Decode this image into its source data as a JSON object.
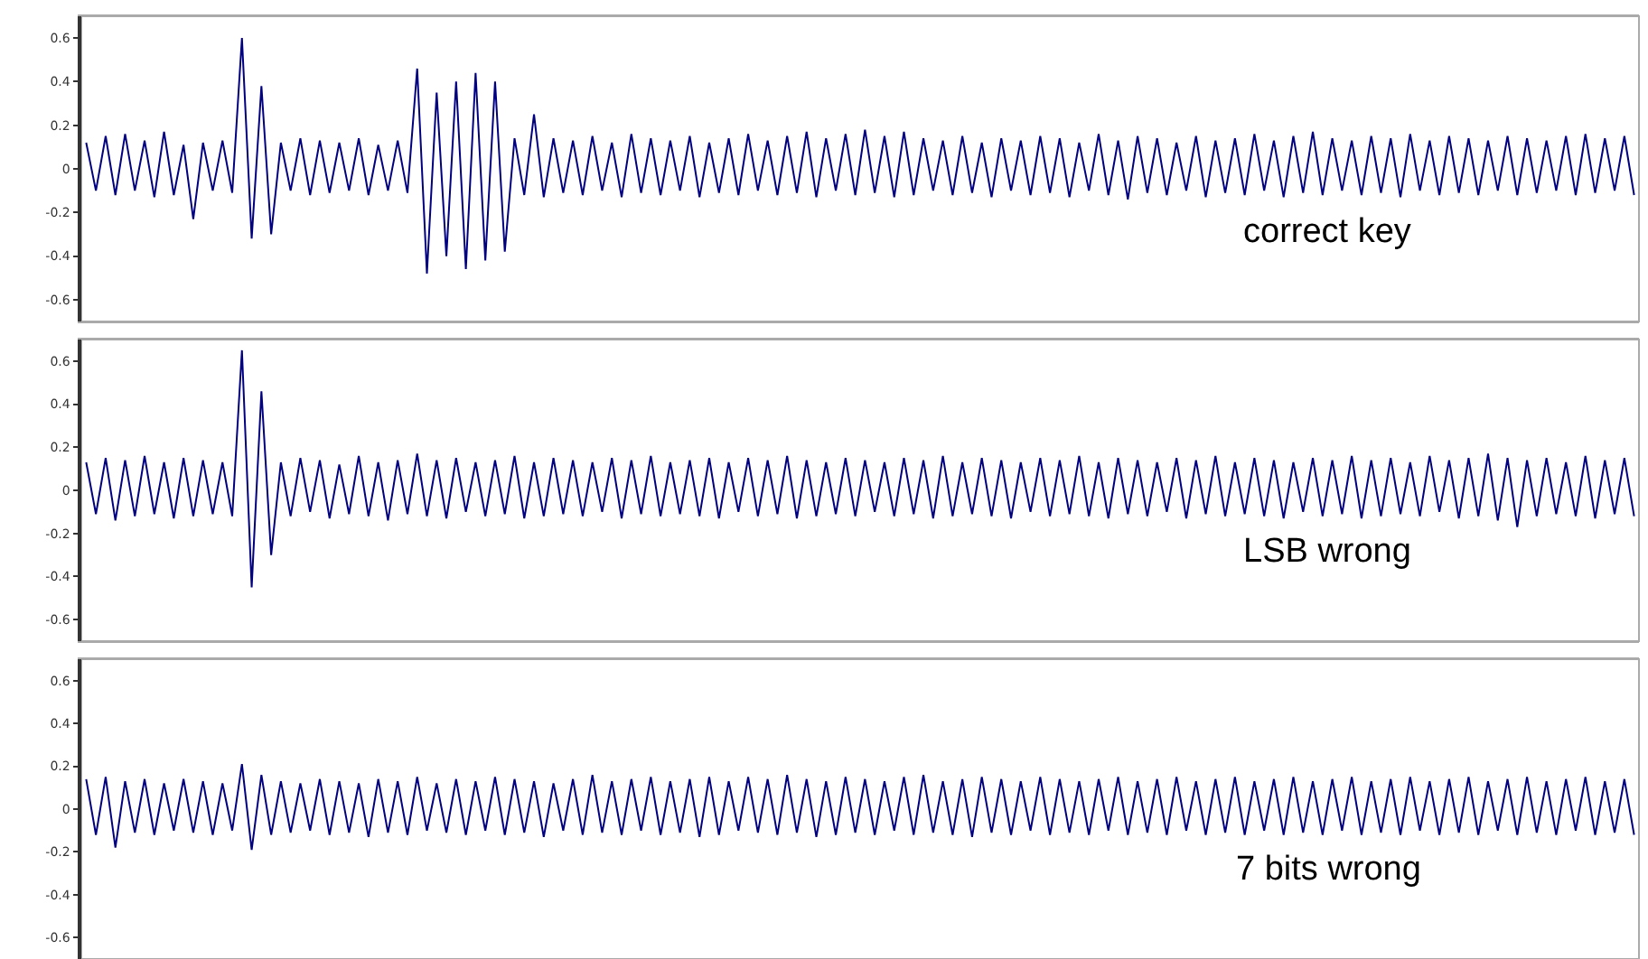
{
  "chart_data": [
    {
      "type": "line",
      "annotations": [
        "correct key"
      ],
      "ylim": [
        -0.7,
        0.7
      ],
      "yticks": [
        -0.6,
        -0.4,
        -0.2,
        0,
        0.2,
        0.4,
        0.6
      ],
      "grid": false,
      "tick_labels": "y",
      "line_style": "solid",
      "categories": [
        null,
        null,
        null,
        null,
        null,
        null,
        null,
        null,
        null,
        null,
        null,
        null,
        null,
        null,
        null,
        null,
        null,
        null,
        null,
        null,
        null,
        null,
        null,
        null,
        null,
        null,
        null,
        null,
        null,
        null,
        null,
        null,
        null,
        null,
        null,
        null,
        null,
        null,
        null,
        null,
        null,
        null,
        null,
        null,
        null,
        null,
        null,
        null,
        null,
        null,
        null,
        null,
        null,
        null,
        null,
        null,
        null,
        null,
        null,
        null,
        null,
        null,
        null,
        null,
        null,
        null,
        null,
        null,
        null,
        null,
        null,
        null,
        null,
        null,
        null,
        null,
        null,
        null,
        null,
        null,
        null,
        null,
        null,
        null,
        null,
        null,
        null,
        null,
        null,
        null,
        null,
        null,
        null,
        null,
        null,
        null,
        null,
        null,
        null,
        null,
        null,
        null,
        null,
        null,
        null,
        null,
        null,
        null,
        null,
        null,
        null,
        null,
        null,
        null,
        null,
        null,
        null,
        null,
        null,
        null,
        null,
        null,
        null,
        null,
        null,
        null,
        null,
        null,
        null,
        null,
        null,
        null,
        null,
        null,
        null,
        null,
        null,
        null,
        null,
        null,
        null,
        null,
        null,
        null,
        null,
        null,
        null,
        null,
        null,
        null,
        null,
        null,
        null,
        null,
        null,
        null,
        null,
        null,
        null,
        null
      ],
      "series": [
        {
          "color": "#000080",
          "values": [
            0.12,
            -0.1,
            0.15,
            -0.12,
            0.16,
            -0.1,
            0.13,
            -0.13,
            0.17,
            -0.12,
            0.11,
            -0.23,
            0.12,
            -0.1,
            0.13,
            -0.11,
            0.6,
            -0.32,
            0.38,
            -0.3,
            0.12,
            -0.1,
            0.14,
            -0.12,
            0.13,
            -0.11,
            0.12,
            -0.1,
            0.14,
            -0.12,
            0.11,
            -0.1,
            0.13,
            -0.11,
            0.46,
            -0.48,
            0.35,
            -0.4,
            0.4,
            -0.46,
            0.44,
            -0.42,
            0.4,
            -0.38,
            0.14,
            -0.12,
            0.25,
            -0.13,
            0.14,
            -0.11,
            0.13,
            -0.12,
            0.15,
            -0.1,
            0.12,
            -0.13,
            0.16,
            -0.11,
            0.14,
            -0.12,
            0.13,
            -0.1,
            0.15,
            -0.13,
            0.12,
            -0.11,
            0.14,
            -0.12,
            0.16,
            -0.1,
            0.13,
            -0.12,
            0.15,
            -0.11,
            0.17,
            -0.13,
            0.14,
            -0.1,
            0.16,
            -0.12,
            0.18,
            -0.11,
            0.15,
            -0.13,
            0.17,
            -0.12,
            0.14,
            -0.1,
            0.13,
            -0.12,
            0.15,
            -0.11,
            0.12,
            -0.13,
            0.14,
            -0.1,
            0.13,
            -0.12,
            0.15,
            -0.11,
            0.14,
            -0.13,
            0.12,
            -0.1,
            0.16,
            -0.12,
            0.13,
            -0.14,
            0.15,
            -0.11,
            0.14,
            -0.12,
            0.12,
            -0.1,
            0.15,
            -0.13,
            0.13,
            -0.11,
            0.14,
            -0.12,
            0.16,
            -0.1,
            0.13,
            -0.13,
            0.15,
            -0.11,
            0.17,
            -0.12,
            0.14,
            -0.1,
            0.13,
            -0.12,
            0.15,
            -0.11,
            0.14,
            -0.13,
            0.16,
            -0.1,
            0.13,
            -0.12,
            0.15,
            -0.11,
            0.14,
            -0.12,
            0.13,
            -0.1,
            0.15,
            -0.12,
            0.14,
            -0.11,
            0.13,
            -0.1,
            0.15,
            -0.12,
            0.16,
            -0.11,
            0.14,
            -0.1,
            0.15,
            -0.12
          ]
        }
      ]
    },
    {
      "type": "line",
      "annotations": [
        "LSB wrong"
      ],
      "ylim": [
        -0.7,
        0.7
      ],
      "yticks": [
        -0.6,
        -0.4,
        -0.2,
        0,
        0.2,
        0.4,
        0.6
      ],
      "grid": false,
      "tick_labels": "y",
      "line_style": "solid",
      "categories": [
        null,
        null,
        null,
        null,
        null,
        null,
        null,
        null,
        null,
        null,
        null,
        null,
        null,
        null,
        null,
        null,
        null,
        null,
        null,
        null,
        null,
        null,
        null,
        null,
        null,
        null,
        null,
        null,
        null,
        null,
        null,
        null,
        null,
        null,
        null,
        null,
        null,
        null,
        null,
        null,
        null,
        null,
        null,
        null,
        null,
        null,
        null,
        null,
        null,
        null,
        null,
        null,
        null,
        null,
        null,
        null,
        null,
        null,
        null,
        null,
        null,
        null,
        null,
        null,
        null,
        null,
        null,
        null,
        null,
        null,
        null,
        null,
        null,
        null,
        null,
        null,
        null,
        null,
        null,
        null,
        null,
        null,
        null,
        null,
        null,
        null,
        null,
        null,
        null,
        null,
        null,
        null,
        null,
        null,
        null,
        null,
        null,
        null,
        null,
        null,
        null,
        null,
        null,
        null,
        null,
        null,
        null,
        null,
        null,
        null,
        null,
        null,
        null,
        null,
        null,
        null,
        null,
        null,
        null,
        null,
        null,
        null,
        null,
        null,
        null,
        null,
        null,
        null,
        null,
        null,
        null,
        null,
        null,
        null,
        null,
        null,
        null,
        null,
        null,
        null,
        null,
        null,
        null,
        null,
        null,
        null,
        null,
        null,
        null,
        null,
        null,
        null,
        null,
        null,
        null,
        null,
        null,
        null,
        null,
        null
      ],
      "series": [
        {
          "color": "#000080",
          "values": [
            0.13,
            -0.11,
            0.15,
            -0.14,
            0.14,
            -0.12,
            0.16,
            -0.11,
            0.13,
            -0.13,
            0.15,
            -0.12,
            0.14,
            -0.11,
            0.13,
            -0.12,
            0.65,
            -0.45,
            0.46,
            -0.3,
            0.13,
            -0.12,
            0.15,
            -0.1,
            0.14,
            -0.13,
            0.12,
            -0.11,
            0.16,
            -0.12,
            0.13,
            -0.14,
            0.14,
            -0.11,
            0.17,
            -0.12,
            0.14,
            -0.13,
            0.15,
            -0.1,
            0.13,
            -0.12,
            0.14,
            -0.11,
            0.16,
            -0.13,
            0.13,
            -0.12,
            0.15,
            -0.11,
            0.14,
            -0.12,
            0.13,
            -0.1,
            0.15,
            -0.13,
            0.14,
            -0.11,
            0.16,
            -0.12,
            0.13,
            -0.11,
            0.14,
            -0.12,
            0.15,
            -0.13,
            0.13,
            -0.1,
            0.15,
            -0.12,
            0.14,
            -0.11,
            0.16,
            -0.13,
            0.14,
            -0.12,
            0.13,
            -0.11,
            0.15,
            -0.12,
            0.14,
            -0.1,
            0.13,
            -0.12,
            0.15,
            -0.11,
            0.14,
            -0.13,
            0.16,
            -0.12,
            0.13,
            -0.11,
            0.15,
            -0.12,
            0.14,
            -0.13,
            0.13,
            -0.1,
            0.15,
            -0.12,
            0.14,
            -0.11,
            0.16,
            -0.12,
            0.13,
            -0.13,
            0.15,
            -0.11,
            0.14,
            -0.12,
            0.13,
            -0.1,
            0.15,
            -0.13,
            0.14,
            -0.11,
            0.16,
            -0.12,
            0.13,
            -0.11,
            0.15,
            -0.12,
            0.14,
            -0.13,
            0.13,
            -0.1,
            0.15,
            -0.12,
            0.14,
            -0.11,
            0.16,
            -0.13,
            0.14,
            -0.12,
            0.15,
            -0.11,
            0.13,
            -0.12,
            0.16,
            -0.1,
            0.14,
            -0.13,
            0.15,
            -0.12,
            0.17,
            -0.14,
            0.15,
            -0.17,
            0.14,
            -0.12,
            0.15,
            -0.11,
            0.13,
            -0.12,
            0.16,
            -0.13,
            0.14,
            -0.11,
            0.15,
            -0.12
          ]
        }
      ]
    },
    {
      "type": "line",
      "annotations": [
        "7 bits wrong"
      ],
      "ylim": [
        -0.7,
        0.7
      ],
      "yticks": [
        -0.6,
        -0.4,
        -0.2,
        0,
        0.2,
        0.4,
        0.6
      ],
      "grid": false,
      "tick_labels": "y",
      "line_style": "solid",
      "categories": [
        null,
        null,
        null,
        null,
        null,
        null,
        null,
        null,
        null,
        null,
        null,
        null,
        null,
        null,
        null,
        null,
        null,
        null,
        null,
        null,
        null,
        null,
        null,
        null,
        null,
        null,
        null,
        null,
        null,
        null,
        null,
        null,
        null,
        null,
        null,
        null,
        null,
        null,
        null,
        null,
        null,
        null,
        null,
        null,
        null,
        null,
        null,
        null,
        null,
        null,
        null,
        null,
        null,
        null,
        null,
        null,
        null,
        null,
        null,
        null,
        null,
        null,
        null,
        null,
        null,
        null,
        null,
        null,
        null,
        null,
        null,
        null,
        null,
        null,
        null,
        null,
        null,
        null,
        null,
        null,
        null,
        null,
        null,
        null,
        null,
        null,
        null,
        null,
        null,
        null,
        null,
        null,
        null,
        null,
        null,
        null,
        null,
        null,
        null,
        null,
        null,
        null,
        null,
        null,
        null,
        null,
        null,
        null,
        null,
        null,
        null,
        null,
        null,
        null,
        null,
        null,
        null,
        null,
        null,
        null,
        null,
        null,
        null,
        null,
        null,
        null,
        null,
        null,
        null,
        null,
        null,
        null,
        null,
        null,
        null,
        null,
        null,
        null,
        null,
        null,
        null,
        null,
        null,
        null,
        null,
        null,
        null,
        null,
        null,
        null,
        null,
        null,
        null,
        null,
        null,
        null,
        null,
        null,
        null,
        null
      ],
      "series": [
        {
          "color": "#000080",
          "values": [
            0.14,
            -0.12,
            0.15,
            -0.18,
            0.13,
            -0.11,
            0.14,
            -0.12,
            0.12,
            -0.1,
            0.14,
            -0.11,
            0.13,
            -0.12,
            0.12,
            -0.1,
            0.21,
            -0.19,
            0.16,
            -0.12,
            0.13,
            -0.11,
            0.12,
            -0.1,
            0.14,
            -0.12,
            0.13,
            -0.11,
            0.12,
            -0.13,
            0.14,
            -0.11,
            0.13,
            -0.12,
            0.15,
            -0.1,
            0.12,
            -0.11,
            0.14,
            -0.12,
            0.13,
            -0.1,
            0.15,
            -0.12,
            0.14,
            -0.11,
            0.13,
            -0.13,
            0.12,
            -0.1,
            0.14,
            -0.12,
            0.16,
            -0.11,
            0.13,
            -0.12,
            0.14,
            -0.1,
            0.15,
            -0.12,
            0.13,
            -0.11,
            0.14,
            -0.13,
            0.15,
            -0.12,
            0.13,
            -0.1,
            0.15,
            -0.11,
            0.14,
            -0.12,
            0.16,
            -0.11,
            0.14,
            -0.13,
            0.13,
            -0.12,
            0.15,
            -0.11,
            0.14,
            -0.12,
            0.13,
            -0.1,
            0.15,
            -0.12,
            0.16,
            -0.11,
            0.13,
            -0.12,
            0.14,
            -0.13,
            0.15,
            -0.11,
            0.14,
            -0.12,
            0.13,
            -0.1,
            0.15,
            -0.12,
            0.14,
            -0.11,
            0.13,
            -0.12,
            0.14,
            -0.1,
            0.15,
            -0.12,
            0.13,
            -0.11,
            0.14,
            -0.12,
            0.15,
            -0.1,
            0.13,
            -0.12,
            0.14,
            -0.11,
            0.15,
            -0.12,
            0.13,
            -0.1,
            0.14,
            -0.12,
            0.15,
            -0.11,
            0.13,
            -0.12,
            0.14,
            -0.1,
            0.15,
            -0.12,
            0.13,
            -0.11,
            0.14,
            -0.12,
            0.15,
            -0.1,
            0.13,
            -0.12,
            0.14,
            -0.11,
            0.15,
            -0.12,
            0.13,
            -0.1,
            0.14,
            -0.12,
            0.15,
            -0.11,
            0.13,
            -0.12,
            0.14,
            -0.1,
            0.15,
            -0.12,
            0.13,
            -0.11,
            0.14,
            -0.12
          ]
        }
      ]
    }
  ]
}
